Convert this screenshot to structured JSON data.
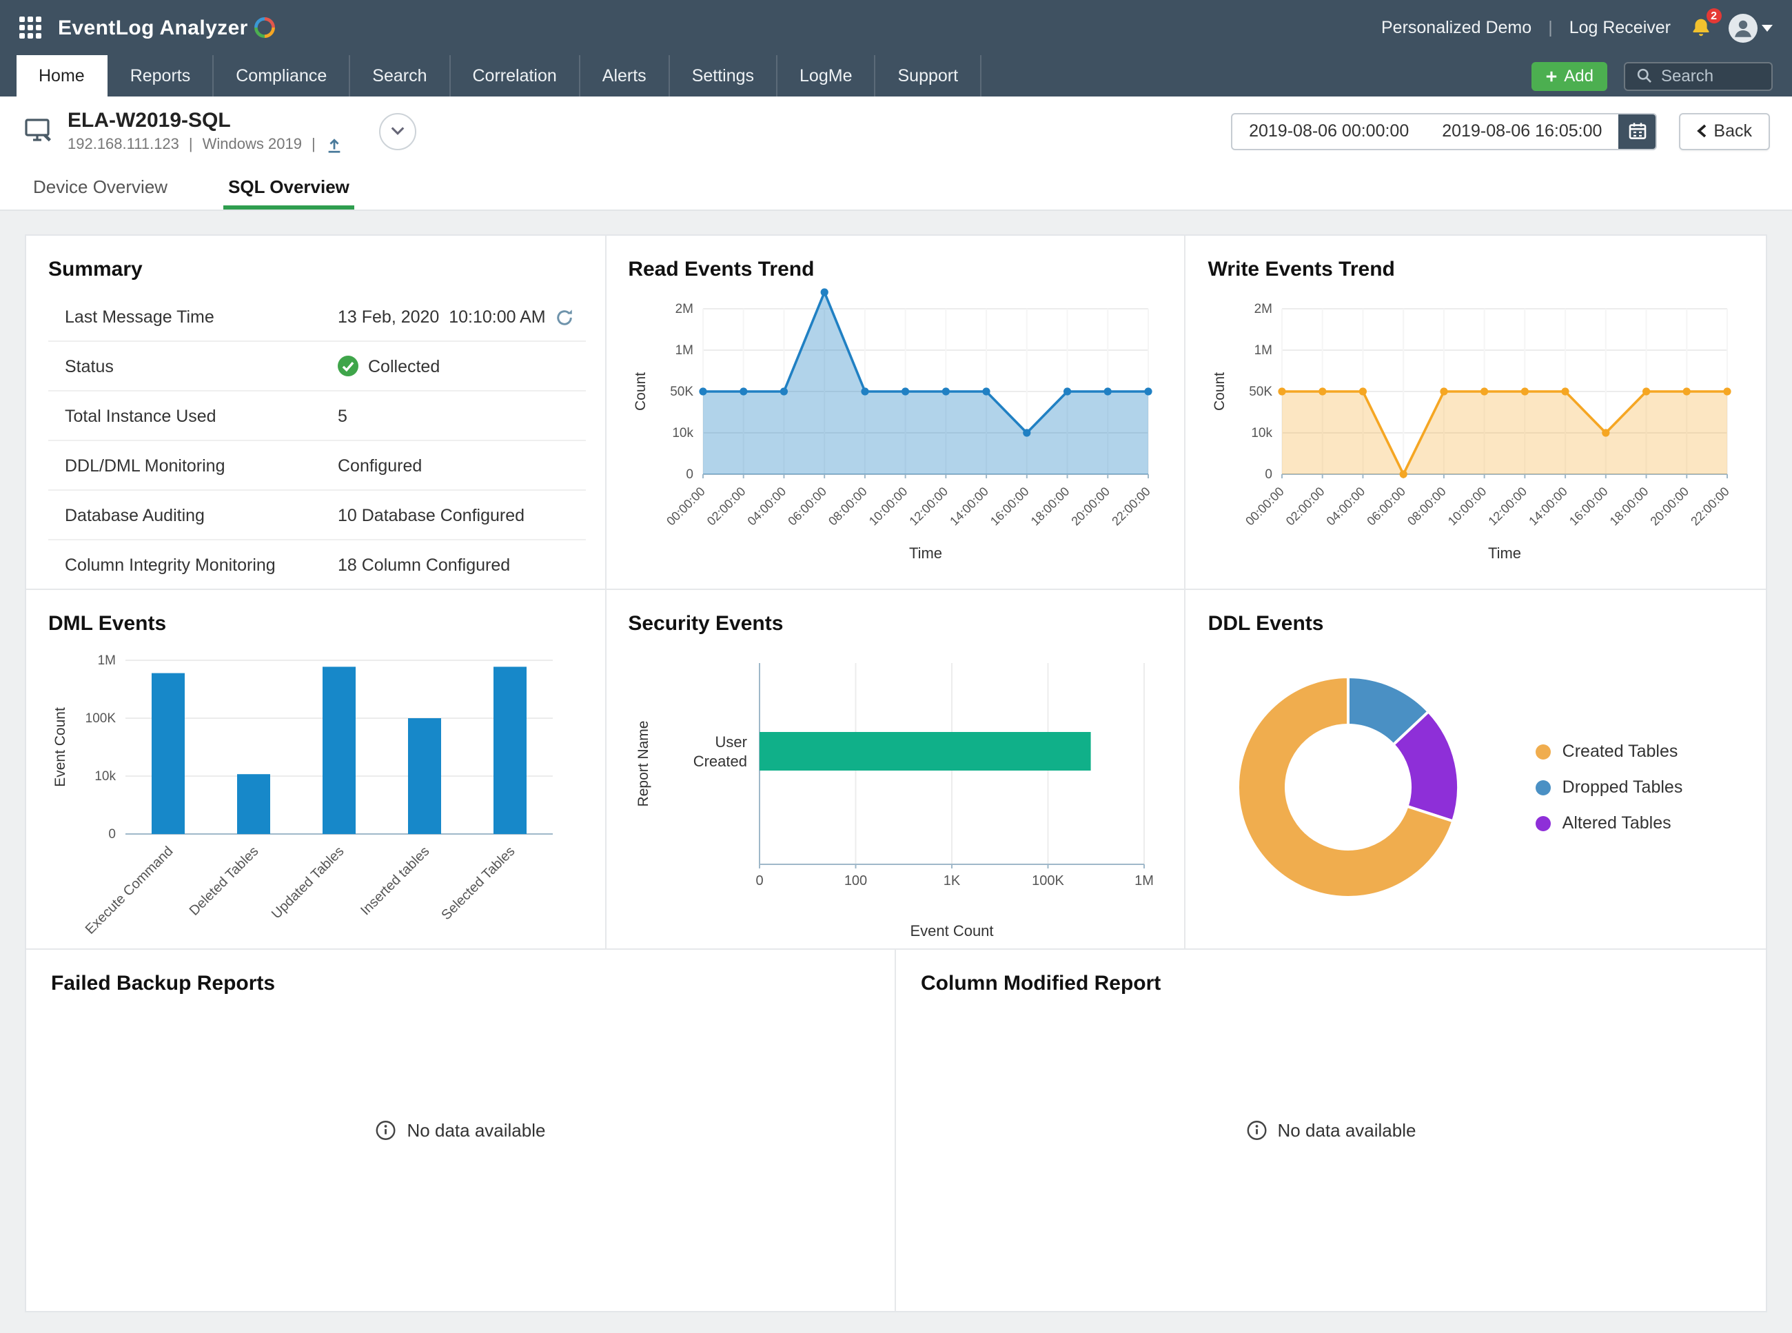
{
  "colors": {
    "topbar_bg": "#3f5161",
    "accent_green": "#4caf50",
    "subtab_green": "#2f9e4f",
    "line_blue": "#2080c3",
    "area_orange": "#f5a623",
    "bar_blue": "#1788c9",
    "hbar_green": "#10b089",
    "donut_orange": "#f0ad4e",
    "donut_blue": "#4a90c4",
    "donut_purple": "#8e2fd8",
    "badge_red": "#e53935"
  },
  "topbar": {
    "brand": "EventLog Analyzer",
    "personalized_demo": "Personalized Demo",
    "log_receiver": "Log Receiver",
    "sep": "|",
    "notification_count": "2"
  },
  "nav": {
    "tabs": [
      {
        "label": "Home"
      },
      {
        "label": "Reports"
      },
      {
        "label": "Compliance"
      },
      {
        "label": "Search"
      },
      {
        "label": "Correlation"
      },
      {
        "label": "Alerts"
      },
      {
        "label": "Settings"
      },
      {
        "label": "LogMe"
      },
      {
        "label": "Support"
      }
    ],
    "add_label": "Add",
    "search_placeholder": "Search"
  },
  "device": {
    "name": "ELA-W2019-SQL",
    "ip": "192.168.111.123",
    "sep": "|",
    "os": "Windows 2019",
    "date_from": "2019-08-06 00:00:00",
    "date_to": "2019-08-06 16:05:00",
    "back_label": "Back"
  },
  "subtabs": {
    "device_overview": "Device Overview",
    "sql_overview": "SQL Overview"
  },
  "summary": {
    "title": "Summary",
    "rows": [
      {
        "label": "Last Message Time",
        "value": "13 Feb, 2020  10:10:00 AM"
      },
      {
        "label": "Status",
        "value": "Collected"
      },
      {
        "label": "Total Instance Used",
        "value": "5"
      },
      {
        "label": "DDL/DML Monitoring",
        "value": "Configured"
      },
      {
        "label": "Database Auditing",
        "value": "10 Database Configured"
      },
      {
        "label": "Column Integrity Monitoring",
        "value": "18 Column Configured"
      }
    ]
  },
  "cards": {
    "read_trend_title": "Read Events Trend",
    "write_trend_title": "Write Events Trend",
    "dml_title": "DML Events",
    "security_title": "Security Events",
    "ddl_title": "DDL Events",
    "failed_backup_title": "Failed Backup Reports",
    "column_modified_title": "Column Modified Report",
    "no_data": "No data available"
  },
  "chart_data": [
    {
      "id": "read-trend",
      "type": "area",
      "title": "Read Events Trend",
      "x": [
        "00:00:00",
        "02:00:00",
        "04:00:00",
        "06:00:00",
        "08:00:00",
        "10:00:00",
        "12:00:00",
        "14:00:00",
        "16:00:00",
        "18:00:00",
        "20:00:00",
        "22:00:00"
      ],
      "values": [
        50000,
        50000,
        50000,
        2400000,
        50000,
        50000,
        50000,
        50000,
        10000,
        50000,
        50000,
        50000
      ],
      "y_ticks": [
        0,
        10000,
        50000,
        1000000,
        2000000
      ],
      "y_tick_labels": [
        "0",
        "10k",
        "50K",
        "1M",
        "2M"
      ],
      "xlabel": "Time",
      "ylabel": "Count",
      "color": "#2080c3",
      "fill_opacity": 0.35
    },
    {
      "id": "write-trend",
      "type": "area",
      "title": "Write Events Trend",
      "x": [
        "00:00:00",
        "02:00:00",
        "04:00:00",
        "06:00:00",
        "08:00:00",
        "10:00:00",
        "12:00:00",
        "14:00:00",
        "16:00:00",
        "18:00:00",
        "20:00:00",
        "22:00:00"
      ],
      "values": [
        50000,
        50000,
        50000,
        0,
        50000,
        50000,
        50000,
        50000,
        10000,
        50000,
        50000,
        50000
      ],
      "y_ticks": [
        0,
        10000,
        50000,
        1000000,
        2000000
      ],
      "y_tick_labels": [
        "0",
        "10k",
        "50K",
        "1M",
        "2M"
      ],
      "xlabel": "Time",
      "ylabel": "Count",
      "color": "#f5a623",
      "fill_opacity": 0.28
    },
    {
      "id": "dml-events",
      "type": "bar",
      "title": "DML Events",
      "categories": [
        "Execute Command",
        "Deleted Tables",
        "Updated Tables",
        "Inserted tables",
        "Selected Tables"
      ],
      "values": [
        800000,
        13000,
        900000,
        100000,
        900000
      ],
      "y_ticks": [
        0,
        10000,
        100000,
        1000000
      ],
      "y_tick_labels": [
        "0",
        "10k",
        "100K",
        "1M"
      ],
      "ylabel": "Event Count",
      "color": "#1788c9"
    },
    {
      "id": "security-events",
      "type": "hbar",
      "title": "Security Events",
      "categories": [
        "User Created"
      ],
      "values": [
        500000
      ],
      "x_ticks": [
        0,
        100,
        1000,
        100000,
        1000000
      ],
      "x_tick_labels": [
        "0",
        "100",
        "1K",
        "100K",
        "1M"
      ],
      "xlabel": "Event Count",
      "ylabel": "Report Name",
      "color": "#10b089"
    },
    {
      "id": "ddl-events",
      "type": "pie",
      "title": "DDL Events",
      "slices": [
        {
          "label": "Dropped Tables",
          "value": 13,
          "color": "#4a90c4"
        },
        {
          "label": "Altered Tables",
          "value": 17,
          "color": "#8e2fd8"
        },
        {
          "label": "Created Tables",
          "value": 70,
          "color": "#f0ad4e"
        }
      ],
      "legend": [
        {
          "label": "Created Tables",
          "color": "#f0ad4e"
        },
        {
          "label": "Dropped Tables",
          "color": "#4a90c4"
        },
        {
          "label": "Altered Tables",
          "color": "#8e2fd8"
        }
      ]
    }
  ]
}
